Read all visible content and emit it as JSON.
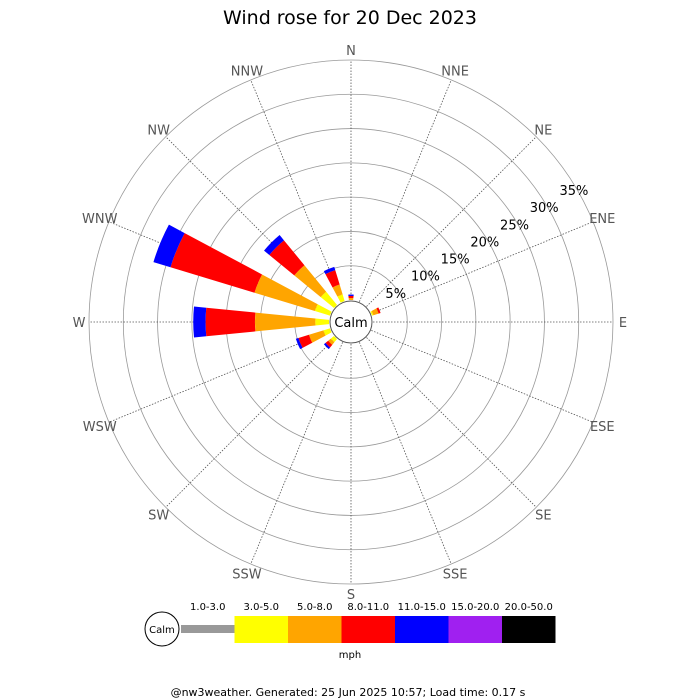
{
  "chart_data": {
    "type": "wind-rose",
    "title": "Wind rose for 20 Dec 2023",
    "directions": [
      "N",
      "NNE",
      "NE",
      "ENE",
      "E",
      "ESE",
      "SE",
      "SSE",
      "S",
      "SSW",
      "SW",
      "WSW",
      "W",
      "WNW",
      "NW",
      "NNW"
    ],
    "radial_ticks": [
      "5%",
      "10%",
      "15%",
      "20%",
      "25%",
      "30%",
      "35%"
    ],
    "radial_max_percent": 35,
    "calm_label": "Calm",
    "speed_bins": [
      {
        "label": "1.0-3.0",
        "color": "#999999"
      },
      {
        "label": "3.0-5.0",
        "color": "#ffff00"
      },
      {
        "label": "5.0-8.0",
        "color": "#ffa500"
      },
      {
        "label": "8.0-11.0",
        "color": "#ff0000"
      },
      {
        "label": "11.0-15.0",
        "color": "#0000ff"
      },
      {
        "label": "15.0-20.0",
        "color": "#a020f0"
      },
      {
        "label": "20.0-50.0",
        "color": "#000000"
      }
    ],
    "speed_unit": "mph",
    "series": [
      {
        "direction": "N",
        "values": [
          0,
          0,
          0.3,
          0.3,
          0.2,
          0,
          0
        ]
      },
      {
        "direction": "NNE",
        "values": [
          0,
          0,
          0,
          0,
          0,
          0,
          0
        ]
      },
      {
        "direction": "NE",
        "values": [
          0,
          0,
          0,
          0,
          0,
          0,
          0
        ]
      },
      {
        "direction": "ENE",
        "values": [
          0,
          0.2,
          0.8,
          0.3,
          0,
          0,
          0
        ]
      },
      {
        "direction": "E",
        "values": [
          0,
          0,
          0,
          0,
          0,
          0,
          0
        ]
      },
      {
        "direction": "ESE",
        "values": [
          0,
          0,
          0,
          0,
          0,
          0,
          0
        ]
      },
      {
        "direction": "SE",
        "values": [
          0,
          0,
          0,
          0,
          0,
          0,
          0
        ]
      },
      {
        "direction": "SSE",
        "values": [
          0,
          0,
          0,
          0,
          0,
          0,
          0
        ]
      },
      {
        "direction": "S",
        "values": [
          0,
          0,
          0,
          0,
          0,
          0,
          0
        ]
      },
      {
        "direction": "SSW",
        "values": [
          0,
          0,
          0,
          0,
          0,
          0,
          0
        ]
      },
      {
        "direction": "SW",
        "values": [
          0,
          0.6,
          0.5,
          0.5,
          0.3,
          0,
          0
        ]
      },
      {
        "direction": "WSW",
        "values": [
          0,
          1.0,
          2.2,
          1.6,
          0.4,
          0,
          0
        ]
      },
      {
        "direction": "W",
        "values": [
          0,
          2.0,
          8.8,
          7.2,
          1.8,
          0,
          0
        ]
      },
      {
        "direction": "WNW",
        "values": [
          0,
          2.3,
          9.2,
          12.8,
          2.6,
          0,
          0
        ]
      },
      {
        "direction": "NW",
        "values": [
          0,
          2.5,
          5.0,
          4.7,
          1.0,
          0,
          0
        ]
      },
      {
        "direction": "NNW",
        "values": [
          0,
          1.0,
          1.5,
          2.2,
          0.5,
          0,
          0
        ]
      }
    ]
  },
  "footer": "@nw3weather. Generated: 25 Jun 2025 10:57; Load time: 0.17 s"
}
